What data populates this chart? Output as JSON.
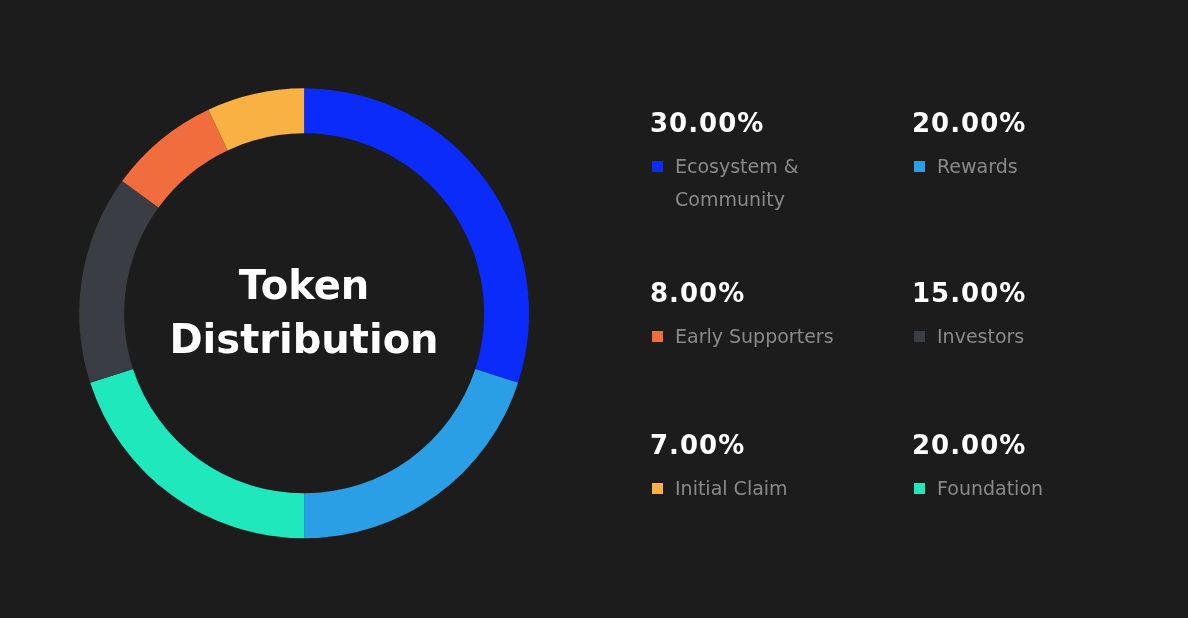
{
  "chart_data": {
    "type": "donut",
    "title": "Token Distribution",
    "categories": [
      "Ecosystem & Community",
      "Rewards",
      "Foundation",
      "Investors",
      "Early Supporters",
      "Initial Claim"
    ],
    "values": [
      30,
      20,
      20,
      15,
      8,
      7
    ],
    "value_labels": [
      "30.00%",
      "20.00%",
      "20.00%",
      "15.00%",
      "8.00%",
      "7.00%"
    ],
    "colors": [
      "#0a2bfa",
      "#2a9fe6",
      "#1fe8bd",
      "#3a3d43",
      "#f26d3d",
      "#f8b142"
    ],
    "legend": "right"
  }
}
